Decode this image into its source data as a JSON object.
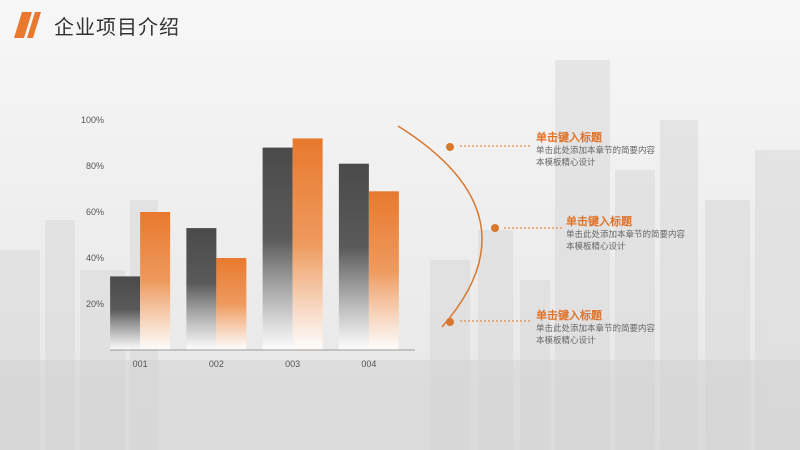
{
  "header": {
    "title": "企业项目介绍"
  },
  "colors": {
    "accent": "#e8792e",
    "dark": "#4d4d4d",
    "text": "#333333"
  },
  "chart_data": {
    "type": "bar",
    "categories": [
      "001",
      "002",
      "003",
      "004"
    ],
    "series": [
      {
        "values": [
          32,
          53,
          88,
          81
        ],
        "color": "#4d4d4d"
      },
      {
        "values": [
          60,
          40,
          92,
          69
        ],
        "color": "#e8792e"
      }
    ],
    "ylim": [
      0,
      100
    ],
    "yticks": [
      "100%",
      "80%",
      "60%",
      "40%",
      "20%"
    ],
    "ytick_values": [
      100,
      80,
      60,
      40,
      20
    ],
    "grid": false
  },
  "items": [
    {
      "title": "单击键入标题",
      "body_lines": [
        "单击此处添加本章节的简要内容",
        "本模板精心设计"
      ]
    },
    {
      "title": "单击键入标题",
      "body_lines": [
        "单击此处添加本章节的简要内容",
        "本模板精心设计"
      ]
    },
    {
      "title": "单击键入标题",
      "body_lines": [
        "单击此处添加本章节的简要内容",
        "本模板精心设计"
      ]
    }
  ]
}
